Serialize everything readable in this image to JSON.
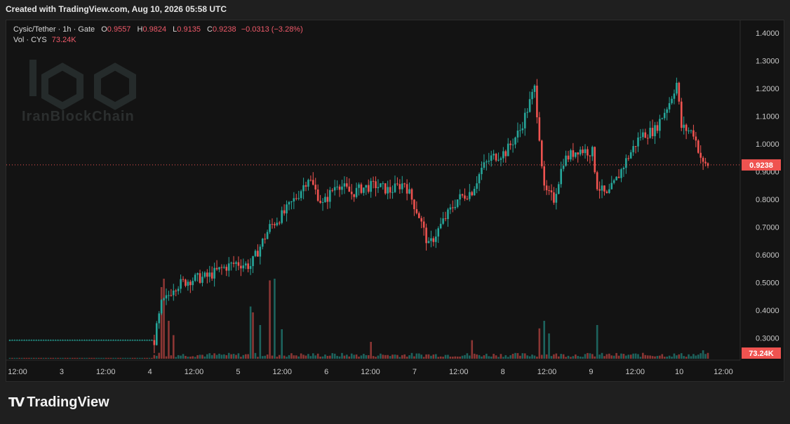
{
  "header": {
    "created_text": "Created with TradingView.com, Aug 10, 2026 05:58 UTC"
  },
  "legend": {
    "pair": "Cysic/Tether · 1h · Gate",
    "o_label": "O",
    "o": "0.9557",
    "h_label": "H",
    "h": "0.9824",
    "l_label": "L",
    "l": "0.9135",
    "c_label": "C",
    "c": "0.9238",
    "change": "−0.0313 (−3.28%)",
    "vol_label": "Vol · CYS",
    "vol_value": "73.24K"
  },
  "watermark": {
    "text": "IranBlockChain",
    "logo": "ibc-logo"
  },
  "footer": {
    "brand": "TradingView",
    "logo_icon": "tradingview-logo-icon"
  },
  "colors": {
    "up": "#26a69a",
    "down": "#ef5350",
    "bg": "#131313"
  },
  "chart_data": {
    "type": "candlestick",
    "y_axis": {
      "min": 0.25,
      "max": 1.42,
      "ticks": [
        "1.4000",
        "1.3000",
        "1.2000",
        "1.1000",
        "1.0000",
        "0.9000",
        "0.8000",
        "0.7000",
        "0.6000",
        "0.5000",
        "0.4000",
        "0.3000"
      ]
    },
    "x_ticks": [
      "12:00",
      "3",
      "12:00",
      "4",
      "12:00",
      "5",
      "12:00",
      "6",
      "12:00",
      "7",
      "12:00",
      "8",
      "12:00",
      "9",
      "12:00",
      "10",
      "12:00"
    ],
    "last_price_label": "0.9238",
    "last_volume_label": "73.24K",
    "close_series": [
      {
        "x": 0,
        "y": 0.29
      },
      {
        "x": 60,
        "y": 0.29
      },
      {
        "x": 63,
        "y": 0.42
      },
      {
        "x": 65,
        "y": 0.44
      },
      {
        "x": 68,
        "y": 0.485
      },
      {
        "x": 75,
        "y": 0.51
      },
      {
        "x": 82,
        "y": 0.52
      },
      {
        "x": 88,
        "y": 0.55
      },
      {
        "x": 94,
        "y": 0.57
      },
      {
        "x": 100,
        "y": 0.56
      },
      {
        "x": 108,
        "y": 0.7
      },
      {
        "x": 114,
        "y": 0.75
      },
      {
        "x": 120,
        "y": 0.82
      },
      {
        "x": 124,
        "y": 0.88
      },
      {
        "x": 130,
        "y": 0.78
      },
      {
        "x": 136,
        "y": 0.86
      },
      {
        "x": 142,
        "y": 0.82
      },
      {
        "x": 146,
        "y": 0.84
      },
      {
        "x": 152,
        "y": 0.85
      },
      {
        "x": 158,
        "y": 0.83
      },
      {
        "x": 164,
        "y": 0.86
      },
      {
        "x": 170,
        "y": 0.74
      },
      {
        "x": 174,
        "y": 0.63
      },
      {
        "x": 180,
        "y": 0.72
      },
      {
        "x": 186,
        "y": 0.8
      },
      {
        "x": 192,
        "y": 0.83
      },
      {
        "x": 196,
        "y": 0.91
      },
      {
        "x": 200,
        "y": 0.95
      },
      {
        "x": 206,
        "y": 0.97
      },
      {
        "x": 212,
        "y": 1.05
      },
      {
        "x": 218,
        "y": 1.2
      },
      {
        "x": 220,
        "y": 1.03
      },
      {
        "x": 222,
        "y": 0.83
      },
      {
        "x": 226,
        "y": 0.8
      },
      {
        "x": 230,
        "y": 0.94
      },
      {
        "x": 236,
        "y": 0.98
      },
      {
        "x": 242,
        "y": 0.97
      },
      {
        "x": 244,
        "y": 0.85
      },
      {
        "x": 248,
        "y": 0.81
      },
      {
        "x": 252,
        "y": 0.87
      },
      {
        "x": 256,
        "y": 0.94
      },
      {
        "x": 262,
        "y": 1.03
      },
      {
        "x": 268,
        "y": 1.05
      },
      {
        "x": 274,
        "y": 1.15
      },
      {
        "x": 277,
        "y": 1.22
      },
      {
        "x": 279,
        "y": 1.06
      },
      {
        "x": 284,
        "y": 1.04
      },
      {
        "x": 288,
        "y": 0.9238
      }
    ],
    "volume_series": [
      {
        "x": 62,
        "v": 0.07
      },
      {
        "x": 63,
        "v": 0.85
      },
      {
        "x": 64,
        "v": 0.95
      },
      {
        "x": 66,
        "v": 0.45
      },
      {
        "x": 68,
        "v": 0.28
      },
      {
        "x": 100,
        "v": 0.62
      },
      {
        "x": 101,
        "v": 0.55
      },
      {
        "x": 104,
        "v": 0.4
      },
      {
        "x": 108,
        "v": 0.93
      },
      {
        "x": 110,
        "v": 0.95
      },
      {
        "x": 113,
        "v": 0.35
      },
      {
        "x": 220,
        "v": 0.36
      },
      {
        "x": 222,
        "v": 0.45
      },
      {
        "x": 224,
        "v": 0.3
      },
      {
        "x": 244,
        "v": 0.4
      },
      {
        "x": 192,
        "v": 0.22
      },
      {
        "x": 150,
        "v": 0.2
      },
      {
        "x": 288,
        "v": 0.1
      }
    ]
  }
}
